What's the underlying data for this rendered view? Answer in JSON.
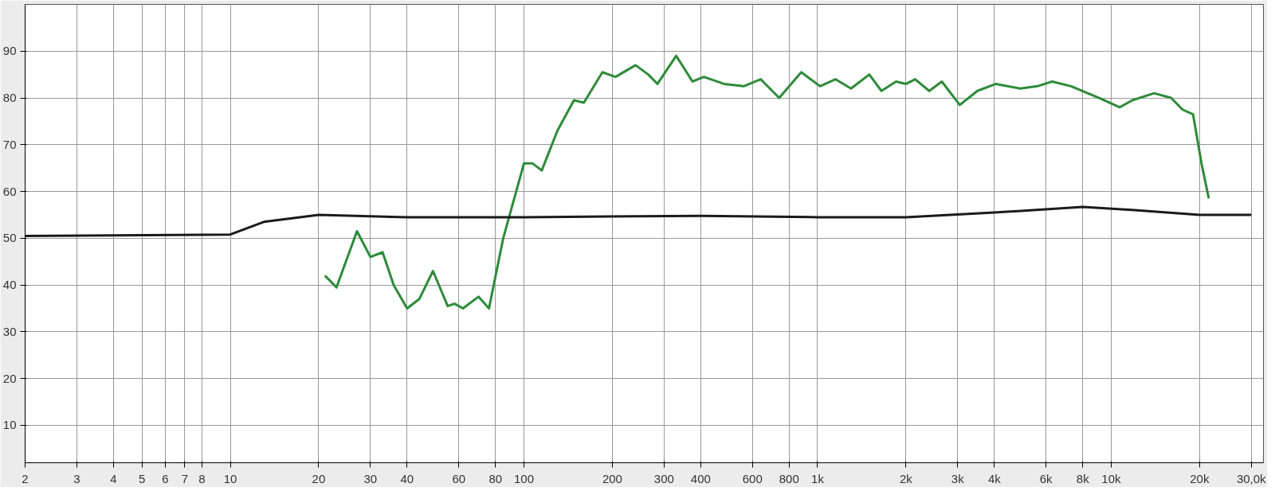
{
  "chart_data": {
    "type": "line",
    "log": "x",
    "grid": true,
    "line_style": "solid",
    "marker": "none",
    "xlim": [
      2,
      33000
    ],
    "ylim": [
      2,
      100
    ],
    "xticks": [
      2,
      3,
      4,
      5,
      6,
      7,
      8,
      10,
      20,
      30,
      40,
      60,
      80,
      100,
      200,
      300,
      400,
      600,
      800,
      {
        "value": 1000,
        "label": "1k"
      },
      {
        "value": 2000,
        "label": "2k"
      },
      {
        "value": 3000,
        "label": "3k"
      },
      {
        "value": 4000,
        "label": "4k"
      },
      {
        "value": 6000,
        "label": "6k"
      },
      {
        "value": 8000,
        "label": "8k"
      },
      {
        "value": 10000,
        "label": "10k"
      },
      {
        "value": 20000,
        "label": "20k"
      },
      {
        "value": 30000,
        "label": "30,0k"
      }
    ],
    "yticks": [
      10,
      20,
      30,
      40,
      50,
      60,
      70,
      80,
      90
    ],
    "series": [
      {
        "color": "#2e8b3a",
        "x": [
          21,
          23,
          27,
          30,
          33,
          36,
          40,
          44,
          49,
          55,
          58,
          62,
          70,
          76,
          85,
          100,
          107,
          115,
          130,
          148,
          160,
          185,
          205,
          240,
          265,
          285,
          330,
          375,
          410,
          480,
          560,
          640,
          740,
          880,
          1020,
          1150,
          1300,
          1500,
          1650,
          1850,
          2000,
          2150,
          2400,
          2650,
          3050,
          3500,
          4050,
          4900,
          5600,
          6300,
          7300,
          9100,
          10700,
          11800,
          14000,
          16000,
          17500,
          19000,
          20300,
          21500
        ],
        "values": [
          42,
          39.5,
          51.5,
          46,
          47,
          40,
          35,
          37,
          43,
          35.5,
          36,
          35,
          37.5,
          35,
          50,
          66,
          66,
          64.5,
          73,
          79.5,
          79,
          85.5,
          84.5,
          87,
          85,
          83,
          89,
          83.5,
          84.5,
          83,
          82.5,
          84,
          80,
          85.5,
          82.5,
          84,
          82,
          85,
          81.5,
          83.5,
          83,
          84,
          81.5,
          83.5,
          78.5,
          81.5,
          83,
          82,
          82.5,
          83.5,
          82.5,
          80,
          78,
          79.5,
          81,
          80,
          77.5,
          76.5,
          66,
          58.5
        ]
      },
      {
        "color": "#1a1a1a",
        "x": [
          2,
          10,
          13,
          20,
          40,
          100,
          400,
          1000,
          2000,
          4000,
          8000,
          12000,
          20000,
          30000
        ],
        "values": [
          50.5,
          50.8,
          53.5,
          55,
          54.5,
          54.5,
          54.8,
          54.5,
          54.5,
          55.5,
          56.7,
          56,
          55,
          55
        ]
      }
    ]
  }
}
